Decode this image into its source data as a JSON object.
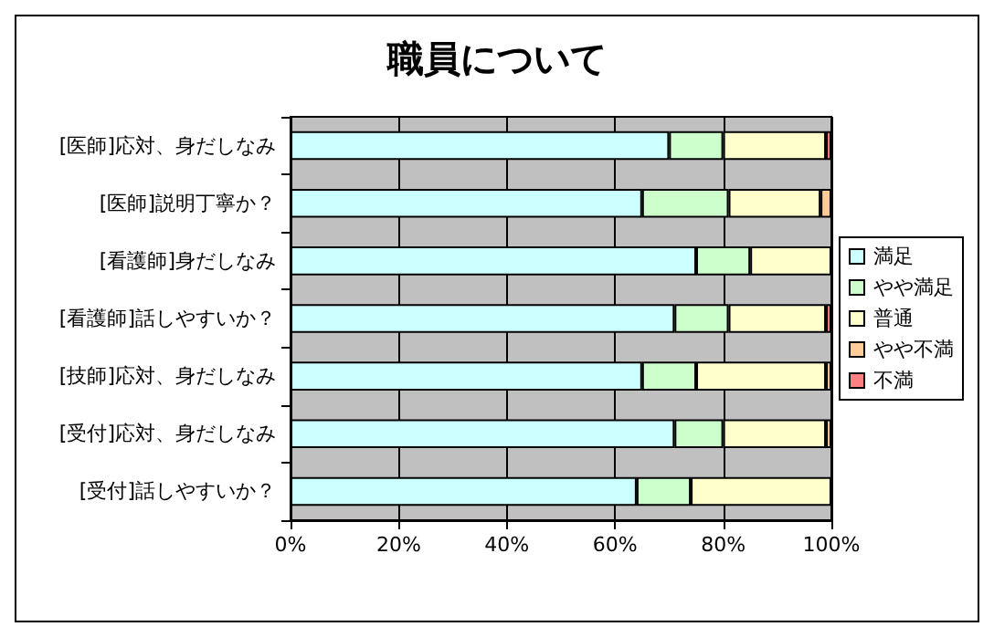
{
  "chart_data": {
    "type": "bar",
    "orientation": "horizontal",
    "stacked": true,
    "title": "職員について",
    "categories": [
      "[医師]応対、身だしなみ",
      "[医師]説明丁寧か？",
      "[看護師]身だしなみ",
      "[看護師]話しやすいか？",
      "[技師]応対、身だしなみ",
      "[受付]応対、身だしなみ",
      "[受付]話しやすいか？"
    ],
    "series": [
      {
        "name": "満足",
        "color": "#ccffff",
        "values": [
          70,
          65,
          75,
          71,
          65,
          71,
          64
        ]
      },
      {
        "name": "やや満足",
        "color": "#ccffcc",
        "values": [
          10,
          16,
          10,
          10,
          10,
          9,
          10
        ]
      },
      {
        "name": "普通",
        "color": "#ffffcc",
        "values": [
          19,
          17,
          15,
          18,
          24,
          19,
          26
        ]
      },
      {
        "name": "やや不満",
        "color": "#ffcc99",
        "values": [
          0,
          2,
          0,
          0,
          1,
          1,
          0
        ]
      },
      {
        "name": "不満",
        "color": "#ff8080",
        "values": [
          1,
          0,
          0,
          1,
          0,
          0,
          0
        ]
      }
    ],
    "xlim": [
      0,
      100
    ],
    "xticks": [
      {
        "value": 0,
        "label": "0%"
      },
      {
        "value": 20,
        "label": "20%"
      },
      {
        "value": 40,
        "label": "40%"
      },
      {
        "value": 60,
        "label": "60%"
      },
      {
        "value": 80,
        "label": "80%"
      },
      {
        "value": 100,
        "label": "100%"
      }
    ],
    "grid": "x",
    "legend": "right"
  }
}
